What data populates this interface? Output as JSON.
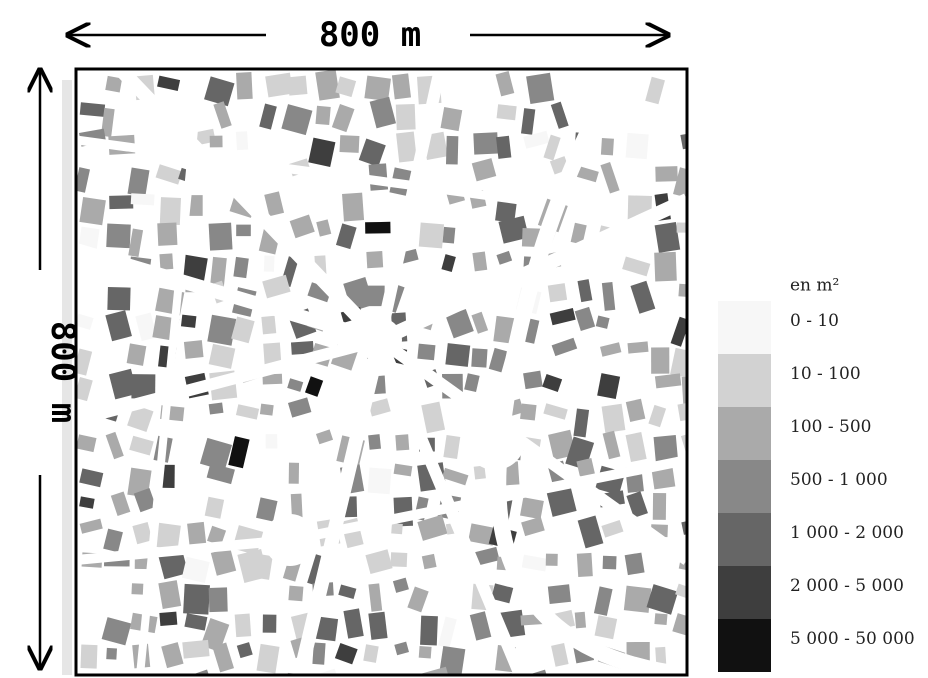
{
  "map": {
    "width_label": "800 m",
    "height_label": "800 m",
    "legend": {
      "title": "en m²",
      "entries": [
        {
          "label": "0 - 10",
          "color": "#f7f7f7"
        },
        {
          "label": "10 - 100",
          "color": "#d2d2d2"
        },
        {
          "label": "100 - 500",
          "color": "#aaaaaa"
        },
        {
          "label": "500 - 1 000",
          "color": "#888888"
        },
        {
          "label": "1 000 - 2 000",
          "color": "#666666"
        },
        {
          "label": "2 000 - 5 000",
          "color": "#3e3e3e"
        },
        {
          "label": "5 000 - 50 000",
          "color": "#111111"
        }
      ]
    }
  }
}
